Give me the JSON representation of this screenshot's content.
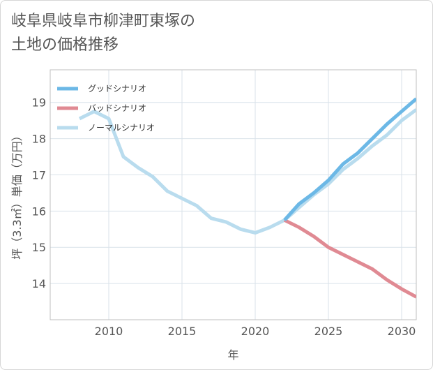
{
  "title_lines": [
    "岐阜県岐阜市柳津町東塚の",
    "土地の価格推移"
  ],
  "chart_data": {
    "type": "line",
    "title": "岐阜県岐阜市柳津町東塚の土地の価格推移",
    "xlabel": "年",
    "ylabel": "坪（3.3㎡）単価（万円）",
    "xlim": [
      2006,
      2031
    ],
    "ylim": [
      13,
      19.9
    ],
    "xticks": [
      2010,
      2015,
      2020,
      2025,
      2030
    ],
    "yticks": [
      14,
      15,
      16,
      17,
      18,
      19
    ],
    "legend_position": "top-left",
    "series": [
      {
        "name": "グッドシナリオ",
        "color": "#6cb8e6",
        "x": [
          2022,
          2023,
          2024,
          2025,
          2026,
          2027,
          2028,
          2029,
          2030,
          2031
        ],
        "y": [
          15.75,
          16.2,
          16.5,
          16.85,
          17.3,
          17.6,
          18.0,
          18.4,
          18.75,
          19.1
        ]
      },
      {
        "name": "バッドシナリオ",
        "color": "#e08a93",
        "x": [
          2022,
          2023,
          2024,
          2025,
          2026,
          2027,
          2028,
          2029,
          2030,
          2031
        ],
        "y": [
          15.75,
          15.55,
          15.3,
          15.0,
          14.8,
          14.6,
          14.4,
          14.1,
          13.85,
          13.63
        ]
      },
      {
        "name": "ノーマルシナリオ",
        "color": "#b9dcee",
        "x": [
          2008,
          2009,
          2010,
          2011,
          2012,
          2013,
          2014,
          2015,
          2016,
          2017,
          2018,
          2019,
          2020,
          2021,
          2022,
          2023,
          2024,
          2025,
          2026,
          2027,
          2028,
          2029,
          2030,
          2031
        ],
        "y": [
          18.55,
          18.75,
          18.55,
          17.5,
          17.2,
          16.95,
          16.55,
          16.35,
          16.15,
          15.8,
          15.7,
          15.5,
          15.4,
          15.55,
          15.75,
          16.1,
          16.45,
          16.75,
          17.15,
          17.45,
          17.8,
          18.1,
          18.5,
          18.8
        ]
      }
    ]
  }
}
